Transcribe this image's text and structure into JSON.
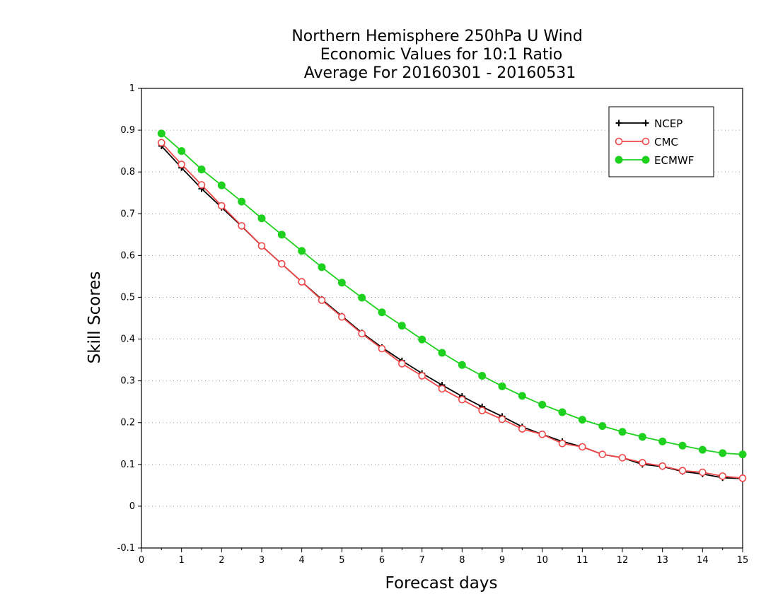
{
  "chart_data": {
    "type": "line",
    "title": [
      "Northern Hemisphere 250hPa U Wind",
      "Economic Values for 10:1 Ratio",
      "Average For 20160301 - 20160531"
    ],
    "xlabel": "Forecast days",
    "ylabel": "Skill Scores",
    "xlim": [
      0,
      15
    ],
    "ylim": [
      -0.1,
      1
    ],
    "x_ticks": [
      "0",
      "1",
      "2",
      "3",
      "4",
      "5",
      "6",
      "7",
      "8",
      "9",
      "10",
      "11",
      "12",
      "13",
      "14",
      "15"
    ],
    "y_ticks": [
      "-0.1",
      "0",
      "0.1",
      "0.2",
      "0.3",
      "0.4",
      "0.5",
      "0.6",
      "0.7",
      "0.8",
      "0.9",
      "1"
    ],
    "grid": "horizontal dotted",
    "legend_position": "top-right",
    "x": [
      0.5,
      1,
      1.5,
      2,
      2.5,
      3,
      3.5,
      4,
      4.5,
      5,
      5.5,
      6,
      6.5,
      7,
      7.5,
      8,
      8.5,
      9,
      9.5,
      10,
      10.5,
      11,
      11.5,
      12,
      12.5,
      13,
      13.5,
      14,
      14.5,
      15
    ],
    "series": [
      {
        "name": "NCEP",
        "color": "#000000",
        "marker": "plus",
        "values": [
          0.862,
          0.81,
          0.76,
          0.715,
          0.67,
          0.623,
          0.58,
          0.537,
          0.495,
          0.455,
          0.415,
          0.38,
          0.348,
          0.318,
          0.29,
          0.263,
          0.238,
          0.215,
          0.19,
          0.172,
          0.155,
          0.142,
          0.124,
          0.116,
          0.1,
          0.095,
          0.083,
          0.077,
          0.068,
          0.066
        ]
      },
      {
        "name": "CMC",
        "color": "#ef4848",
        "marker": "open-circle",
        "values": [
          0.87,
          0.818,
          0.769,
          0.719,
          0.671,
          0.623,
          0.58,
          0.537,
          0.493,
          0.453,
          0.413,
          0.377,
          0.341,
          0.312,
          0.281,
          0.255,
          0.229,
          0.208,
          0.185,
          0.172,
          0.15,
          0.142,
          0.124,
          0.116,
          0.104,
          0.096,
          0.085,
          0.081,
          0.072,
          0.067
        ]
      },
      {
        "name": "ECMWF",
        "color": "#1fd11f",
        "marker": "filled-circle",
        "values": [
          0.892,
          0.85,
          0.806,
          0.768,
          0.729,
          0.689,
          0.65,
          0.611,
          0.572,
          0.535,
          0.499,
          0.464,
          0.432,
          0.399,
          0.367,
          0.338,
          0.312,
          0.287,
          0.264,
          0.243,
          0.225,
          0.207,
          0.192,
          0.178,
          0.166,
          0.155,
          0.145,
          0.135,
          0.127,
          0.124
        ]
      }
    ]
  }
}
